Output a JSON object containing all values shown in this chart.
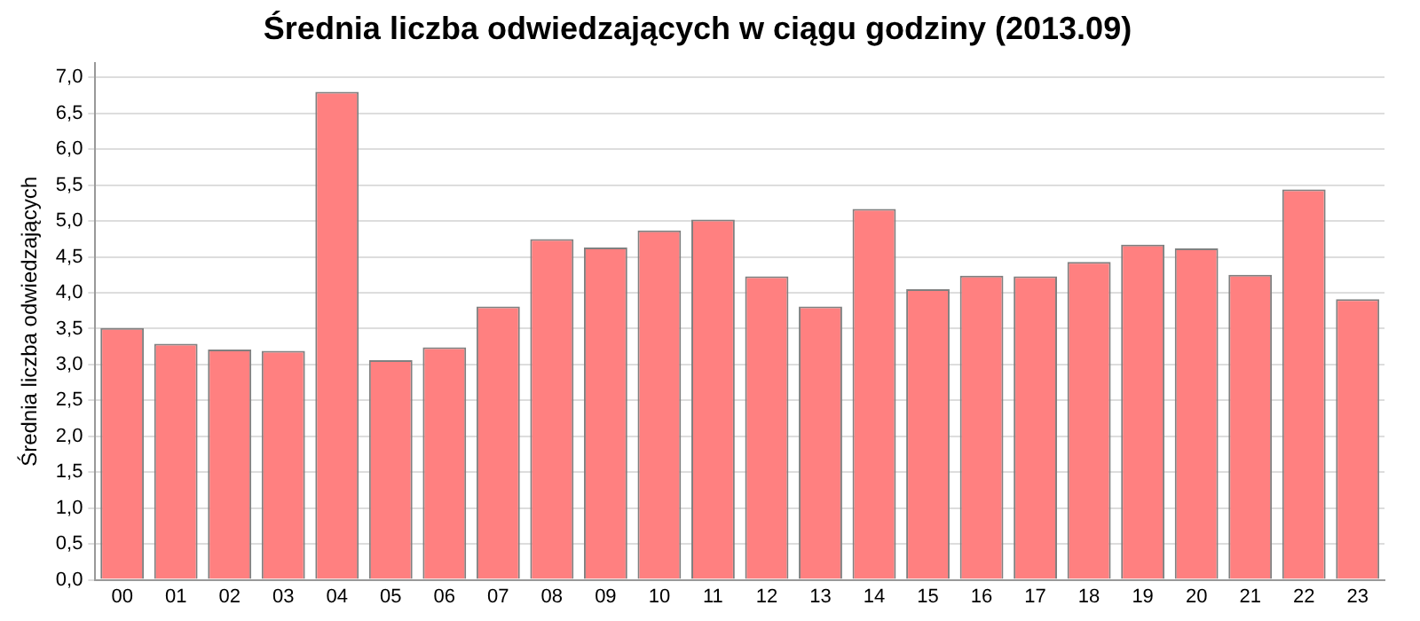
{
  "chart_data": {
    "type": "bar",
    "title": "Średnia liczba odwiedzających w ciągu godziny (2013.09)",
    "ylabel": "Średnia liczba odwiedzających",
    "categories": [
      "00",
      "01",
      "02",
      "03",
      "04",
      "05",
      "06",
      "07",
      "08",
      "09",
      "10",
      "11",
      "12",
      "13",
      "14",
      "15",
      "16",
      "17",
      "18",
      "19",
      "20",
      "21",
      "22",
      "23"
    ],
    "values": [
      3.51,
      3.29,
      3.21,
      3.19,
      6.8,
      3.06,
      3.24,
      3.81,
      4.75,
      4.63,
      4.87,
      5.02,
      4.23,
      3.81,
      5.17,
      4.05,
      4.24,
      4.23,
      4.43,
      4.67,
      4.62,
      4.25,
      5.44,
      3.91
    ],
    "color": "#ff8080",
    "ylim": [
      0,
      7.2
    ],
    "yticks": [
      {
        "value": 0,
        "label": "0,0"
      },
      {
        "value": 0.5,
        "label": "0,5"
      },
      {
        "value": 1,
        "label": "1,0"
      },
      {
        "value": 1.5,
        "label": "1,5"
      },
      {
        "value": 2,
        "label": "2,0"
      },
      {
        "value": 2.5,
        "label": "2,5"
      },
      {
        "value": 3,
        "label": "3,0"
      },
      {
        "value": 3.5,
        "label": "3,5"
      },
      {
        "value": 4,
        "label": "4,0"
      },
      {
        "value": 4.5,
        "label": "4,5"
      },
      {
        "value": 5,
        "label": "5,0"
      },
      {
        "value": 5.5,
        "label": "5,5"
      },
      {
        "value": 6,
        "label": "6,0"
      },
      {
        "value": 6.5,
        "label": "6,5"
      },
      {
        "value": 7,
        "label": "7,0"
      }
    ],
    "grid": "y",
    "legend": false
  }
}
